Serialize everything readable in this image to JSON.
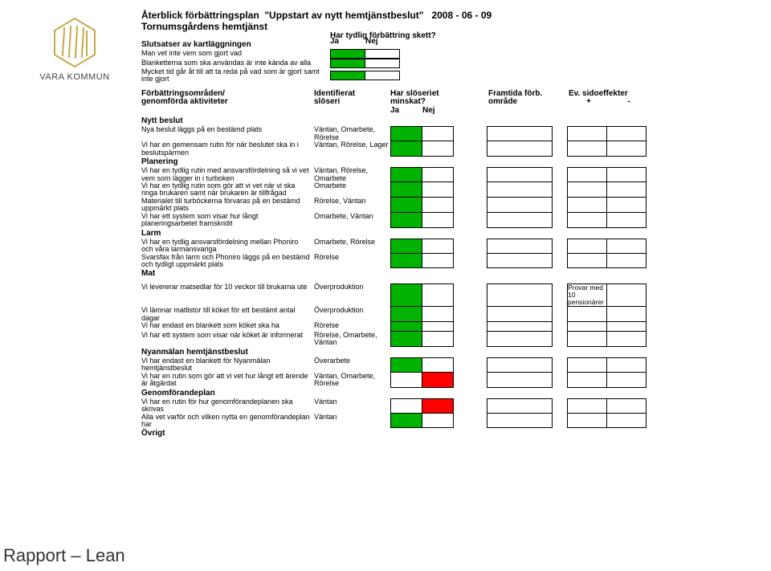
{
  "header": {
    "title_prefix": "Återblick förbättringsplan",
    "title_quoted": "\"Uppstart av nytt hemtjänstbeslut\"",
    "date": "2008 - 06 - 09",
    "subtitle": "Tornumsgårdens hemtjänst"
  },
  "logo_text": "VARA KOMMUN",
  "rapport_label": "Rapport – Lean",
  "colors": {
    "green": "#00b300",
    "red": "#ff0000",
    "white": "#ffffff",
    "border": "#000000"
  },
  "top_block": {
    "left_label": "Slutsatser av kartläggningen",
    "q": "Har tydlig förbättring skett?",
    "ja": "Ja",
    "nej": "Nej",
    "rows": [
      {
        "label": "Man vet inte vem som gjort vad",
        "ja": "green",
        "nej": "white"
      },
      {
        "label": "Blanketterna som ska användas är inte kända av alla",
        "ja": "green",
        "nej": "white"
      },
      {
        "label": "Mycket tid går åt till att ta reda på vad som är gjort samt inte gjort",
        "ja": "green",
        "nej": "white"
      }
    ]
  },
  "grid_headers": {
    "act1": "Förbättringsområden/",
    "act2": "genomförda aktiviteter",
    "waste1": "Identifierat",
    "waste2": "slöseri",
    "ja_nej_q": "Har slöseriet minskat?",
    "ja": "Ja",
    "nej": "Nej",
    "fram1": "Framtida förb.",
    "fram2": "område",
    "side1": "Ev. sidoeffekter",
    "plus": "+",
    "minus": "-"
  },
  "sections": [
    {
      "label": "Nytt beslut",
      "rows": [
        {
          "act": "Nya beslut läggs på en bestämd plats",
          "waste": "Väntan, Omarbete, Rörelse",
          "ja": "green",
          "nej": "white",
          "fram": "",
          "sideL": "white",
          "sideR": "white"
        },
        {
          "act": "Vi har en gemensam rutin för när beslutet ska in i beslutspärmen",
          "waste": "Väntan, Rörelse, Lager",
          "ja": "green",
          "nej": "white",
          "fram": "",
          "sideL": "white",
          "sideR": "white"
        }
      ]
    },
    {
      "label": "Planering",
      "rows": [
        {
          "act": "Vi har en tydlig rutin med ansvarsfördelning så vi vet vem som lägger in i turboken",
          "waste": "Väntan, Rörelse, Omarbete",
          "ja": "green",
          "nej": "white",
          "fram": "",
          "sideL": "white",
          "sideR": "white"
        },
        {
          "act": "Vi har en tydlig rutin som gör att vi vet när vi ska ringa brukaren samt när brukaren är tillfrågad",
          "waste": "Omarbete",
          "ja": "green",
          "nej": "white",
          "fram": "",
          "sideL": "white",
          "sideR": "white"
        },
        {
          "act": "Materialet till turböckerna förvaras på en bestämd uppmärkt plats",
          "waste": "Rörelse, Väntan",
          "ja": "green",
          "nej": "white",
          "fram": "",
          "sideL": "white",
          "sideR": "white"
        },
        {
          "act": "Vi har ett system som visar hur långt planeringsarbetet framskridit",
          "waste": "Omarbete, Väntan",
          "ja": "green",
          "nej": "white",
          "fram": "",
          "sideL": "white",
          "sideR": "white"
        }
      ]
    },
    {
      "label": "Larm",
      "rows": [
        {
          "act": "Vi har en tydlig ansvarsfördelning mellan Phoniro och våra larmansvariga",
          "waste": "Omarbete, Rörelse",
          "ja": "green",
          "nej": "white",
          "fram": "",
          "sideL": "white",
          "sideR": "white"
        },
        {
          "act": "Svarsfax från larm och Phoniro läggs på en bestämd och tydligt uppmärkt plats",
          "waste": "Rörelse",
          "ja": "green",
          "nej": "white",
          "fram": "",
          "sideL": "white",
          "sideR": "white"
        }
      ]
    },
    {
      "label": "Mat",
      "spacer_after_label": true,
      "rows": [
        {
          "act": "Vi levererar matsedlar för 10 veckor till brukarna ute",
          "waste": "Överproduktion",
          "ja": "green",
          "nej": "white",
          "fram": "",
          "sideL_text": "Provar med 10 pensionärer",
          "sideL": "white",
          "sideR": "white"
        },
        {
          "act": "Vi lämnar matlistor till köket för ett bestämt antal dagar",
          "waste": "Överproduktion",
          "ja": "green",
          "nej": "white",
          "fram": "",
          "sideL": "white",
          "sideR": "white"
        },
        {
          "act": "Vi har endast en blankett som köket ska ha",
          "waste": "Rörelse",
          "ja": "green",
          "nej": "white",
          "fram": "",
          "sideL": "white",
          "sideR": "white"
        },
        {
          "act": "Vi har ett system som visar när köket är informerat",
          "waste": "Rörelse, Omarbete, Väntan",
          "ja": "green",
          "nej": "white",
          "fram": "",
          "sideL": "white",
          "sideR": "white"
        }
      ]
    },
    {
      "label": "Nyanmälan hemtjänstbeslut",
      "rows": [
        {
          "act": "Vi har endast en blankett för Nyanmälan hemtjänstbeslut",
          "waste": "Överarbete",
          "ja": "green",
          "nej": "white",
          "fram": "",
          "sideL": "white",
          "sideR": "white"
        },
        {
          "act": "Vi har en rutin som gör att vi vet hur långt ett ärende är åtgärdat",
          "waste": "Väntan, Omarbete, Rörelse",
          "ja": "white",
          "nej": "red",
          "fram": "",
          "sideL": "white",
          "sideR": "white"
        }
      ]
    },
    {
      "label": "Genomförandeplan",
      "rows": [
        {
          "act": "Vi har en rutin för hur genomförandeplanen ska skrivas",
          "waste": "Väntan",
          "ja": "white",
          "nej": "red",
          "fram": "",
          "sideL": "white",
          "sideR": "white"
        },
        {
          "act": "Alla vet varför och vilken nytta en genomförandeplan har",
          "waste": "Väntan",
          "ja": "green",
          "nej": "white",
          "fram": "",
          "sideL": "white",
          "sideR": "white"
        }
      ]
    },
    {
      "label": "Övrigt",
      "rows": []
    }
  ]
}
